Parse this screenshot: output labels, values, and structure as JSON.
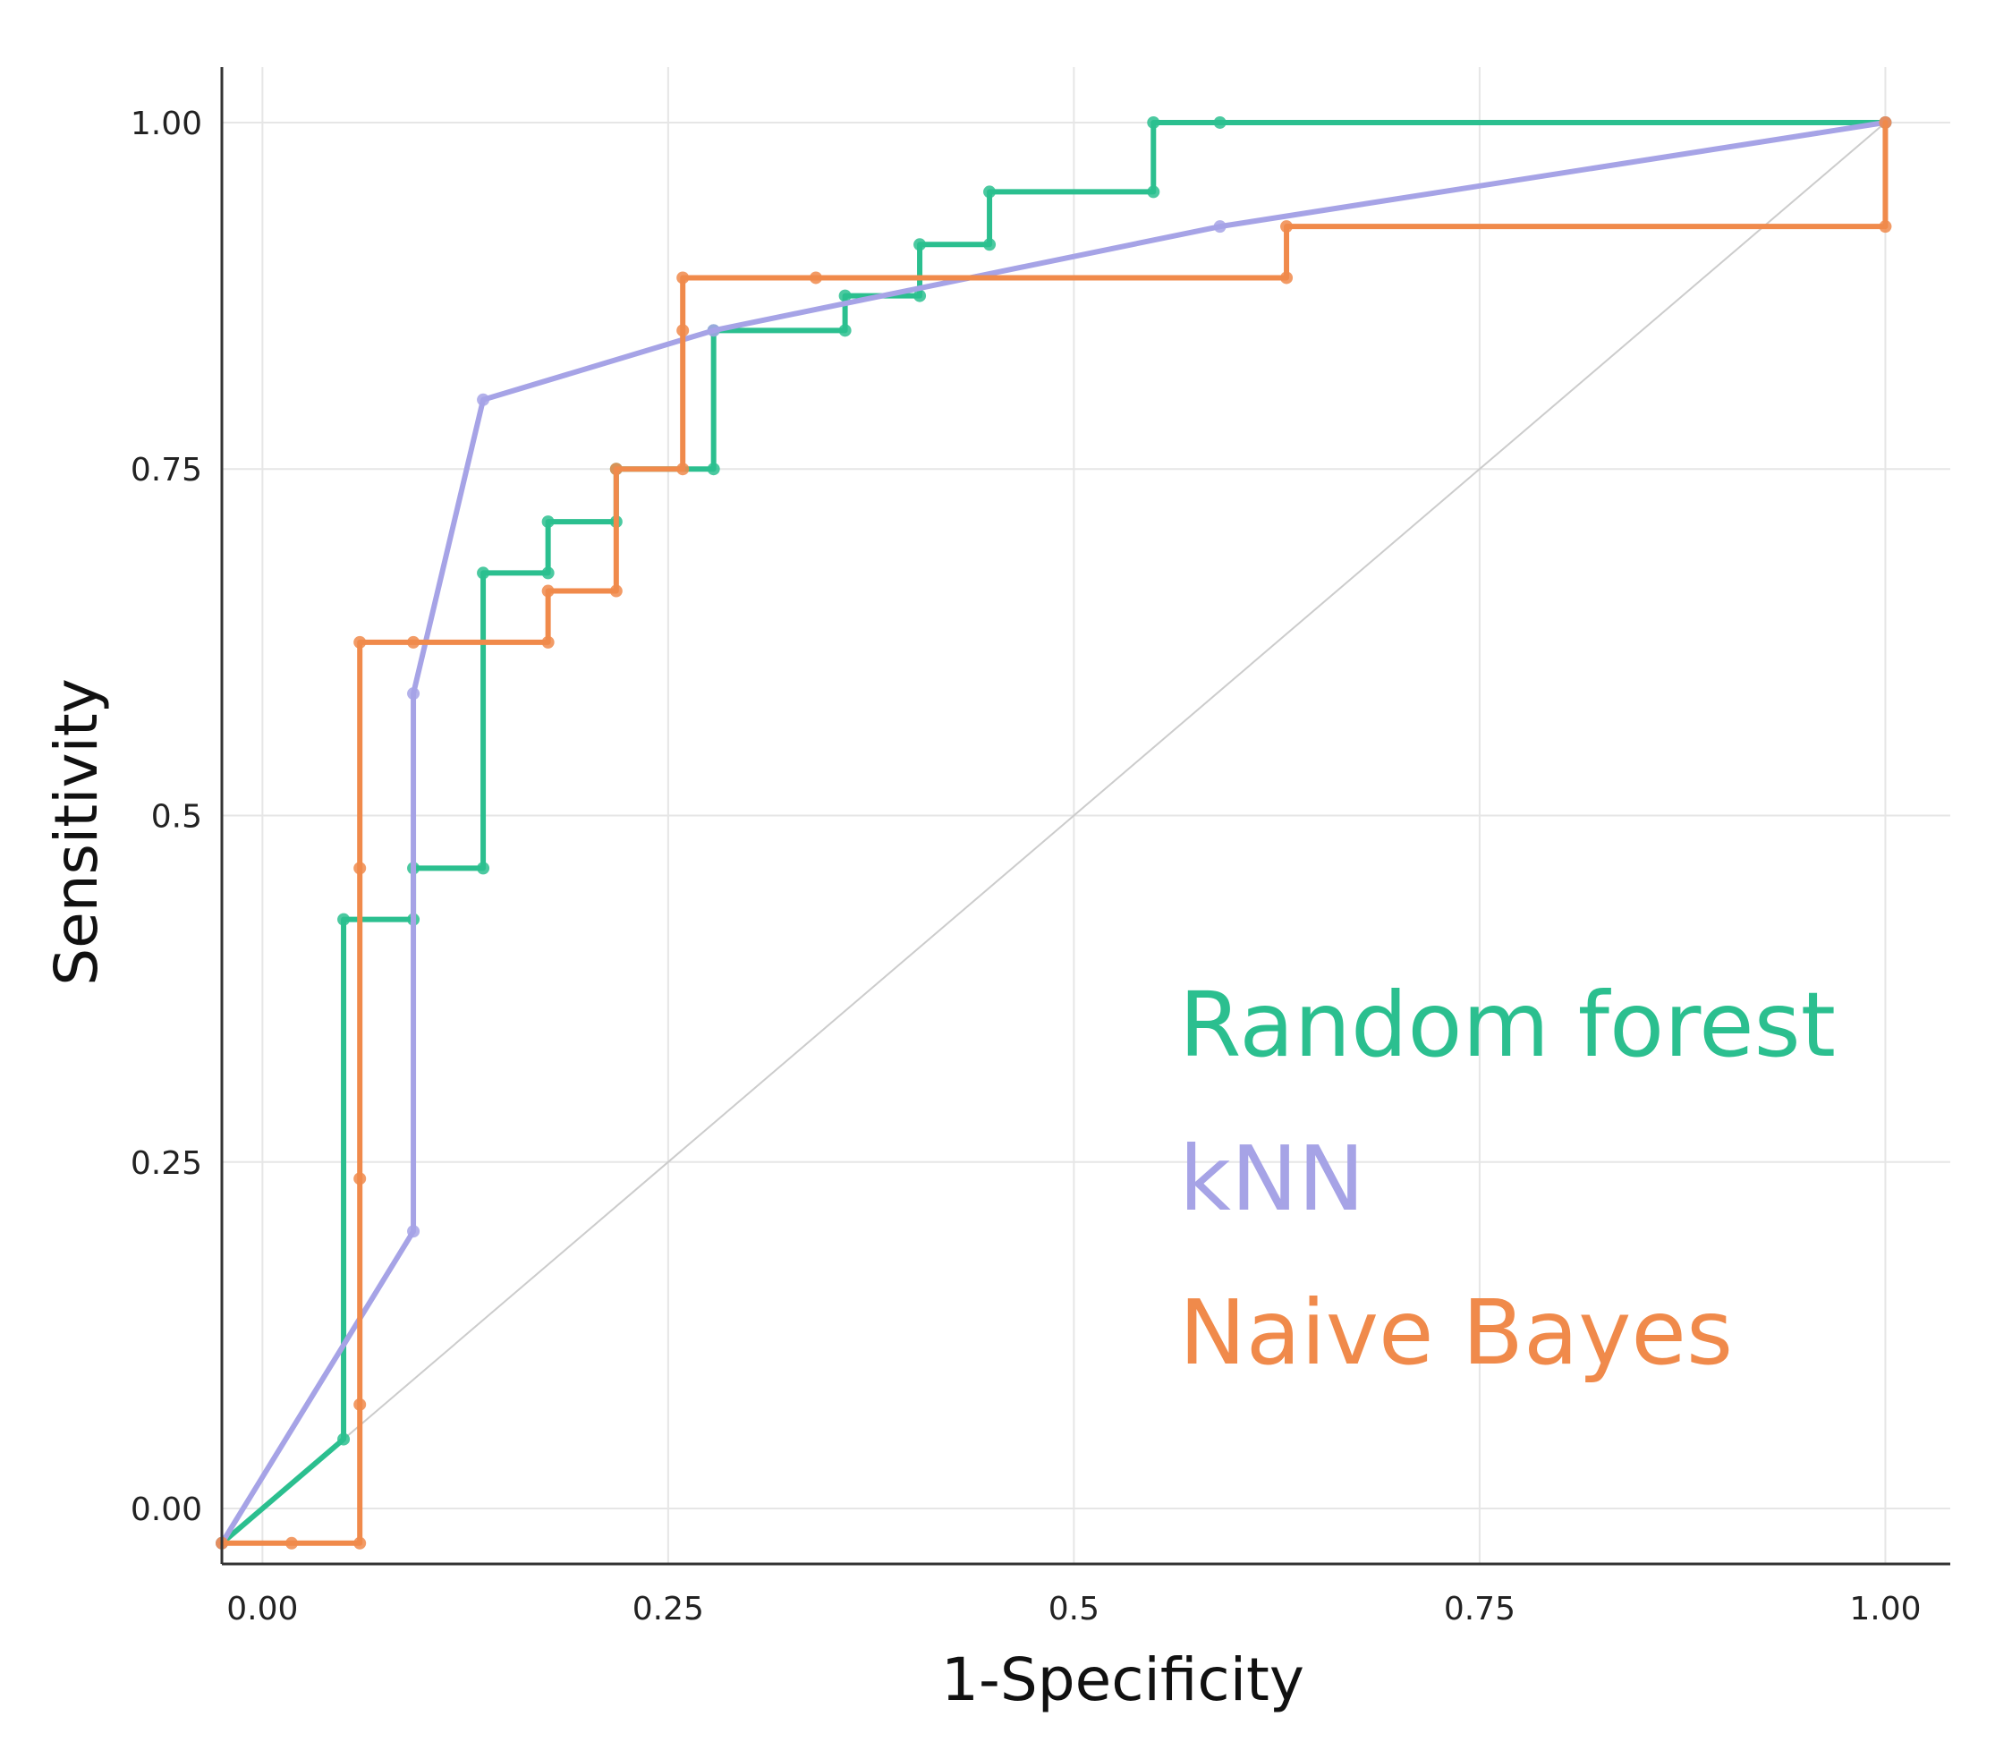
{
  "chart_data": {
    "type": "line",
    "title": "",
    "xlabel": "1-Specificity",
    "ylabel": "Sensitivity",
    "xlim": [
      -0.025,
      1.04
    ],
    "ylim": [
      -0.04,
      1.04
    ],
    "xticks": [
      {
        "value": 0.0,
        "label": "0.00"
      },
      {
        "value": 0.25,
        "label": "0.25"
      },
      {
        "value": 0.5,
        "label": "0.5"
      },
      {
        "value": 0.75,
        "label": "0.75"
      },
      {
        "value": 1.0,
        "label": "1.00"
      }
    ],
    "yticks": [
      {
        "value": 0.0,
        "label": "0.00"
      },
      {
        "value": 0.25,
        "label": "0.25"
      },
      {
        "value": 0.5,
        "label": "0.5"
      },
      {
        "value": 0.75,
        "label": "0.75"
      },
      {
        "value": 1.0,
        "label": "1.00"
      }
    ],
    "grid": true,
    "legend_position": "bottom-right",
    "reference_line": {
      "from": [
        -0.025,
        -0.025
      ],
      "to": [
        1.0,
        1.0
      ],
      "color": "#cccccc"
    },
    "series": [
      {
        "name": "Random forest",
        "color": "#2bbf8f",
        "points": [
          [
            -0.025,
            -0.025
          ],
          [
            0.05,
            0.05
          ],
          [
            0.05,
            0.425
          ],
          [
            0.093,
            0.425
          ],
          [
            0.093,
            0.462
          ],
          [
            0.136,
            0.462
          ],
          [
            0.136,
            0.675
          ],
          [
            0.176,
            0.675
          ],
          [
            0.176,
            0.712
          ],
          [
            0.218,
            0.712
          ],
          [
            0.218,
            0.75
          ],
          [
            0.278,
            0.75
          ],
          [
            0.278,
            0.85
          ],
          [
            0.359,
            0.85
          ],
          [
            0.359,
            0.875
          ],
          [
            0.405,
            0.875
          ],
          [
            0.405,
            0.912
          ],
          [
            0.448,
            0.912
          ],
          [
            0.448,
            0.95
          ],
          [
            0.549,
            0.95
          ],
          [
            0.549,
            1.0
          ],
          [
            0.59,
            1.0
          ],
          [
            1.0,
            1.0
          ]
        ]
      },
      {
        "name": "kNN",
        "color": "#a6a3e6",
        "points": [
          [
            -0.025,
            -0.025
          ],
          [
            0.093,
            0.2
          ],
          [
            0.093,
            0.588
          ],
          [
            0.136,
            0.8
          ],
          [
            0.278,
            0.85
          ],
          [
            0.59,
            0.925
          ],
          [
            1.0,
            1.0
          ]
        ]
      },
      {
        "name": "Naive Bayes",
        "color": "#f08a4b",
        "points": [
          [
            -0.025,
            -0.025
          ],
          [
            0.018,
            -0.025
          ],
          [
            0.06,
            -0.025
          ],
          [
            0.06,
            0.075
          ],
          [
            0.06,
            0.238
          ],
          [
            0.06,
            0.462
          ],
          [
            0.06,
            0.625
          ],
          [
            0.093,
            0.625
          ],
          [
            0.176,
            0.625
          ],
          [
            0.176,
            0.662
          ],
          [
            0.218,
            0.662
          ],
          [
            0.218,
            0.75
          ],
          [
            0.259,
            0.75
          ],
          [
            0.259,
            0.85
          ],
          [
            0.259,
            0.888
          ],
          [
            0.341,
            0.888
          ],
          [
            0.631,
            0.888
          ],
          [
            0.631,
            0.925
          ],
          [
            1.0,
            0.925
          ],
          [
            1.0,
            1.0
          ]
        ]
      }
    ]
  }
}
